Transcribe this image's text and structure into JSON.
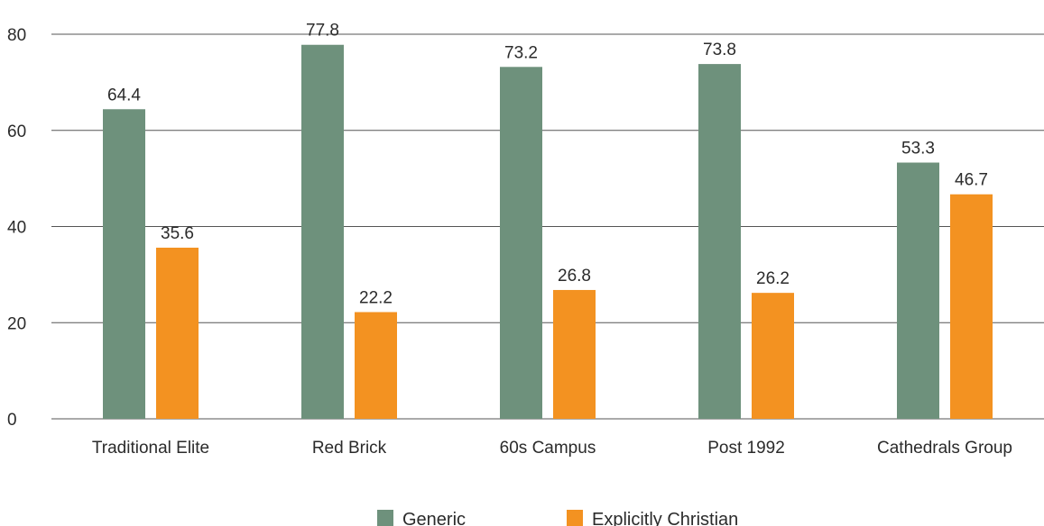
{
  "chart_data": {
    "type": "bar",
    "categories": [
      "Traditional Elite",
      "Red Brick",
      "60s Campus",
      "Post 1992",
      "Cathedrals Group"
    ],
    "series": [
      {
        "name": "Generic",
        "values": [
          64.4,
          77.8,
          73.2,
          73.8,
          53.3
        ],
        "color": "#6e917c"
      },
      {
        "name": "Explicitly Christian",
        "values": [
          35.6,
          22.2,
          26.8,
          26.2,
          46.7
        ],
        "color": "#f39221"
      }
    ],
    "yticks": [
      "0",
      "20",
      "40",
      "60",
      "80"
    ],
    "data_labels": [
      [
        "64.4",
        "77.8",
        "73.2",
        "73.8",
        "53.3"
      ],
      [
        "35.6",
        "22.2",
        "26.8",
        "26.2",
        "46.7"
      ]
    ],
    "ylim": [
      0,
      80
    ],
    "grid": true,
    "legend_position": "bottom"
  }
}
